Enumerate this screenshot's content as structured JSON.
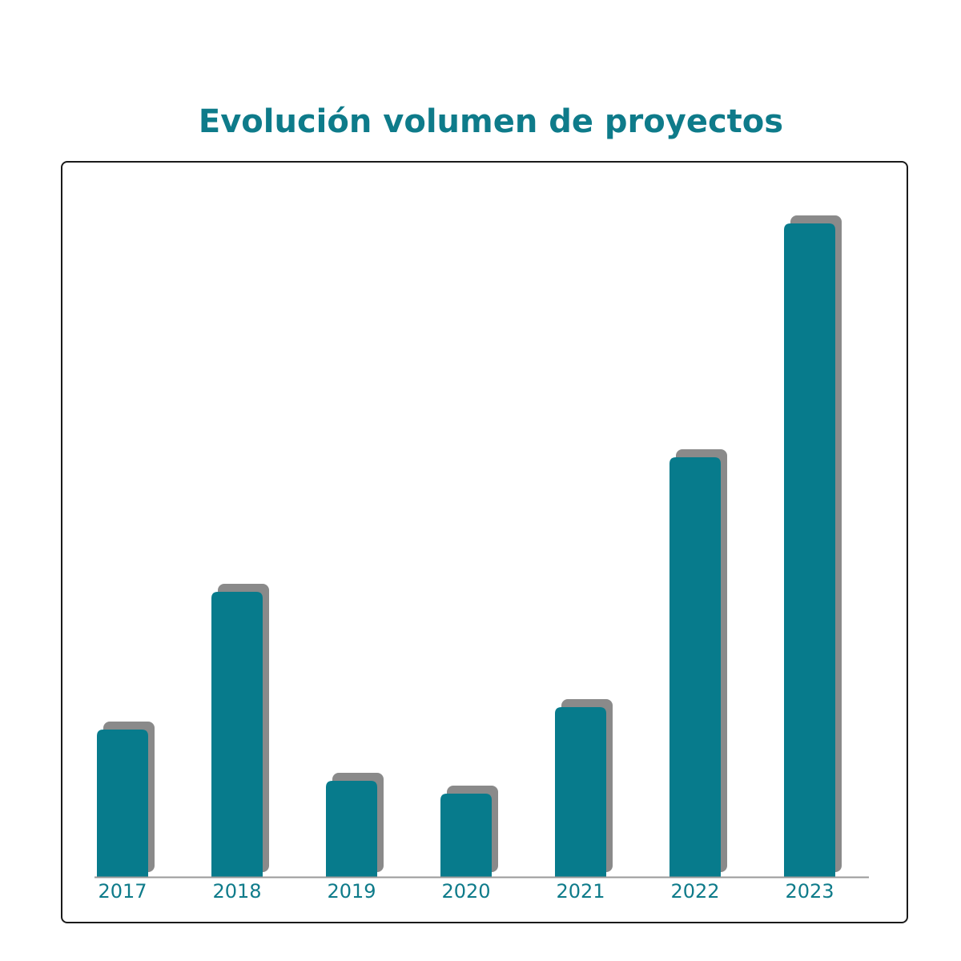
{
  "chart_data": {
    "type": "bar",
    "title": "Evolución volumen de proyectos",
    "categories": [
      "2017",
      "2018",
      "2019",
      "2020",
      "2021",
      "2022",
      "2023"
    ],
    "values": [
      23,
      44.5,
      15,
      13,
      26.5,
      65.5,
      102
    ],
    "ylim": [
      0,
      104
    ],
    "grid": false,
    "legend": "none",
    "xlabel": "",
    "ylabel": ""
  },
  "colors": {
    "bar": "#077b8c",
    "shadow": "#8a8a8a",
    "title": "#0e7b8a",
    "axis": "#9a9a9a"
  }
}
